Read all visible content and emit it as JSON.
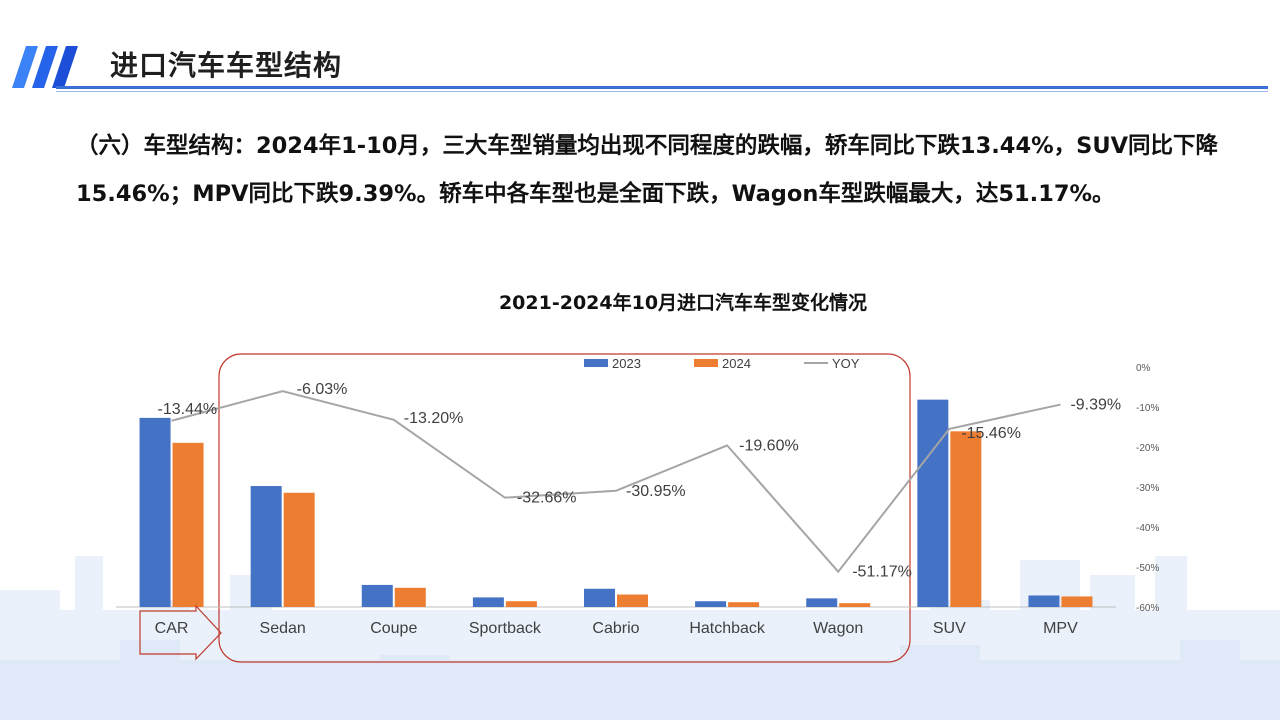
{
  "header": {
    "title": "进口汽车车型结构"
  },
  "summary": {
    "text": "（六）车型结构：2024年1-10月，三大车型销量均出现不同程度的跌幅，轿车同比下跌13.44%，SUV同比下降15.46%；MPV同比下跌9.39%。轿车中各车型也是全面下跌，Wagon车型跌幅最大，达51.17%。"
  },
  "colors": {
    "series_2023": "#4472C4",
    "series_2024": "#ED7D31",
    "yoy_line": "#A5A5A5",
    "accent": "#3b6fd8",
    "highlight_box": "#C0392B"
  },
  "chart_data": {
    "type": "bar",
    "title": "2021-2024年10月进口汽车车型变化情况",
    "categories": [
      "CAR",
      "Sedan",
      "Coupe",
      "Sportback",
      "Cabrio",
      "Hatchback",
      "Wagon",
      "SUV",
      "MPV"
    ],
    "series": [
      {
        "name": "2023",
        "type": "bar",
        "axis": "primary",
        "values": [
          197,
          126,
          23,
          10,
          19,
          6,
          9,
          216,
          12
        ]
      },
      {
        "name": "2024",
        "type": "bar",
        "axis": "primary",
        "values": [
          171,
          119,
          20,
          6,
          13,
          5,
          4,
          183,
          11
        ]
      },
      {
        "name": "YOY",
        "type": "line",
        "axis": "secondary",
        "values": [
          -13.44,
          -6.03,
          -13.2,
          -32.66,
          -30.95,
          -19.6,
          -51.17,
          -15.46,
          -9.39
        ]
      }
    ],
    "data_labels": [
      "-13.44%",
      "-6.03%",
      "-13.20%",
      "-32.66%",
      "-30.95%",
      "-19.60%",
      "-51.17%",
      "-15.46%",
      "-9.39%"
    ],
    "secondary_axis": {
      "ticks": [
        "0%",
        "-10%",
        "-20%",
        "-30%",
        "-40%",
        "-50%",
        "-60%"
      ],
      "range": [
        -60,
        0
      ]
    },
    "legend": "top-center",
    "grid": false
  }
}
